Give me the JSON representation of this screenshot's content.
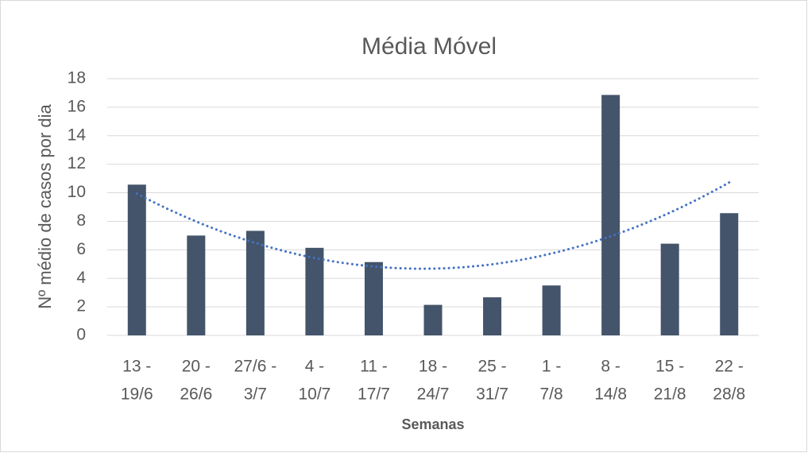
{
  "chart_data": {
    "type": "bar",
    "title": "Média Móvel",
    "x_label": "Semanas",
    "y_label": "Nº médio de casos por dia",
    "categories": [
      [
        "13 -",
        "19/6"
      ],
      [
        "20 -",
        "26/6"
      ],
      [
        "27/6 -",
        "3/7"
      ],
      [
        "4 -",
        "10/7"
      ],
      [
        "11 -",
        "17/7"
      ],
      [
        "18 -",
        "24/7"
      ],
      [
        "25 -",
        "31/7"
      ],
      [
        "1 -",
        "7/8"
      ],
      [
        "8 -",
        "14/8"
      ],
      [
        "15 -",
        "21/8"
      ],
      [
        "22 -",
        "28/8"
      ]
    ],
    "values": [
      10.57,
      7.0,
      7.33,
      6.14,
      5.14,
      2.14,
      2.67,
      3.5,
      16.86,
      6.43,
      8.57
    ],
    "color": "#44546a",
    "ylim": [
      0,
      18
    ],
    "yticks": [
      0,
      2,
      4,
      6,
      8,
      10,
      12,
      14,
      16,
      18
    ],
    "grid": true,
    "trendline": {
      "kind": "polynomial",
      "order": 2,
      "color": "#4472c4",
      "style": "dotted"
    }
  }
}
